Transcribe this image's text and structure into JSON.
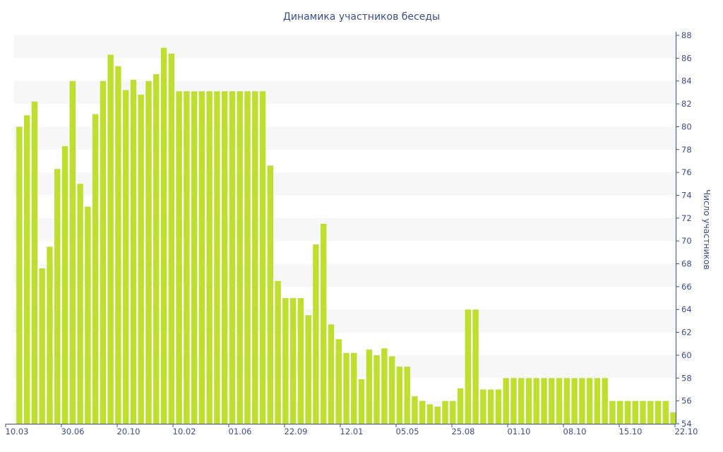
{
  "chart_data": {
    "type": "bar",
    "title": "Динамика участников беседы",
    "xlabel": "",
    "ylabel": "Число участников",
    "ylim": [
      54,
      88
    ],
    "y_ticks": [
      54,
      56,
      58,
      60,
      62,
      64,
      66,
      68,
      70,
      72,
      74,
      76,
      78,
      80,
      82,
      84,
      86,
      88
    ],
    "y_axis_position": "right",
    "x_tick_labels": [
      "10.03",
      "30.06",
      "20.10",
      "10.02",
      "01.06",
      "22.09",
      "12.01",
      "05.05",
      "25.08",
      "01.10",
      "08.10",
      "15.10",
      "22.10"
    ],
    "bar_color": "#bedf2e",
    "band_color": "#f7f7f7",
    "axis_color": "#3a4d8f",
    "values": [
      80,
      81,
      82.2,
      67.6,
      69.5,
      76.3,
      78.3,
      84,
      75,
      73,
      81.1,
      84,
      86.3,
      85.3,
      83.2,
      84.1,
      82.8,
      84,
      84.6,
      86.9,
      86.4,
      83.1,
      83.1,
      83.1,
      83.1,
      83.1,
      83.1,
      83.1,
      83.1,
      83.1,
      83.1,
      83.1,
      83.1,
      76.6,
      66.5,
      65,
      65,
      65,
      63.5,
      69.7,
      71.5,
      62.7,
      61.4,
      60.2,
      60.2,
      57.9,
      60.5,
      60,
      60.6,
      59.9,
      59,
      59,
      56.4,
      56,
      55.7,
      55.5,
      56,
      56,
      57.1,
      64,
      64,
      57,
      57,
      57,
      58,
      58,
      58,
      58,
      58,
      58,
      58,
      58,
      58,
      58,
      58,
      58,
      58,
      58,
      56,
      56,
      56,
      56,
      56,
      56,
      56,
      56,
      55
    ]
  }
}
